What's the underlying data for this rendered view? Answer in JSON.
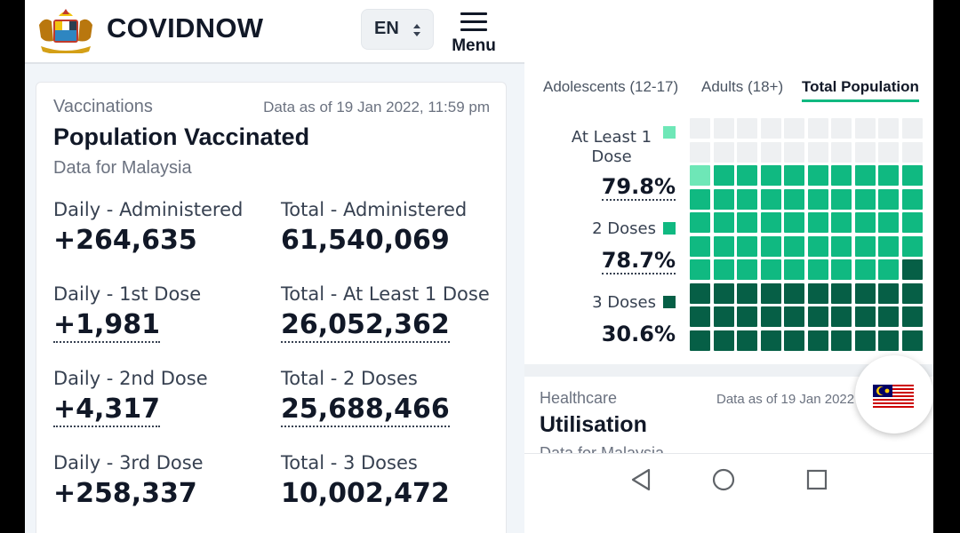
{
  "header": {
    "brand": "COVIDNOW",
    "language": "EN",
    "menu_label": "Menu",
    "crest_icon": "malaysia-coat-of-arms-icon"
  },
  "vaccination_card": {
    "label": "Vaccinations",
    "as_of": "Data as of 19 Jan 2022, 11:59 pm",
    "title": "Population Vaccinated",
    "subtitle": "Data for Malaysia",
    "stats": [
      {
        "label": "Daily - Administered",
        "value": "+264,635"
      },
      {
        "label": "Total - Administered",
        "value": "61,540,069"
      },
      {
        "label": "Daily - 1st Dose",
        "value": "+1,981"
      },
      {
        "label": "Total - At Least 1 Dose",
        "value": "26,052,362"
      },
      {
        "label": "Daily - 2nd Dose",
        "value": "+4,317"
      },
      {
        "label": "Total - 2 Doses",
        "value": "25,688,466"
      },
      {
        "label": "Daily - 3rd Dose",
        "value": "+258,337"
      },
      {
        "label": "Total - 3 Doses",
        "value": "10,002,472"
      }
    ]
  },
  "population_tabs": [
    {
      "label": "Adolescents (12-17)",
      "active": false
    },
    {
      "label": "Adults (18+)",
      "active": false
    },
    {
      "label": "Total Population",
      "active": true
    }
  ],
  "waffle": {
    "legend": [
      {
        "label": "At Least 1 Dose",
        "value": "79.8%",
        "color": "#6ee7b7"
      },
      {
        "label": "2 Doses",
        "value": "78.7%",
        "color": "#10b981"
      },
      {
        "label": "3 Doses",
        "value": "30.6%",
        "color": "#065f46"
      }
    ],
    "empty_color": "#eef0f2"
  },
  "healthcare_card": {
    "label": "Healthcare",
    "as_of": "Data as of 19 Jan 2022",
    "title": "Utilisation",
    "subtitle": "Data for Malaysia"
  },
  "fab": {
    "icon": "malaysia-flag-icon"
  },
  "navigation": {
    "back_icon": "back-triangle-icon",
    "home_icon": "home-circle-icon",
    "recents_icon": "recents-square-icon"
  }
}
